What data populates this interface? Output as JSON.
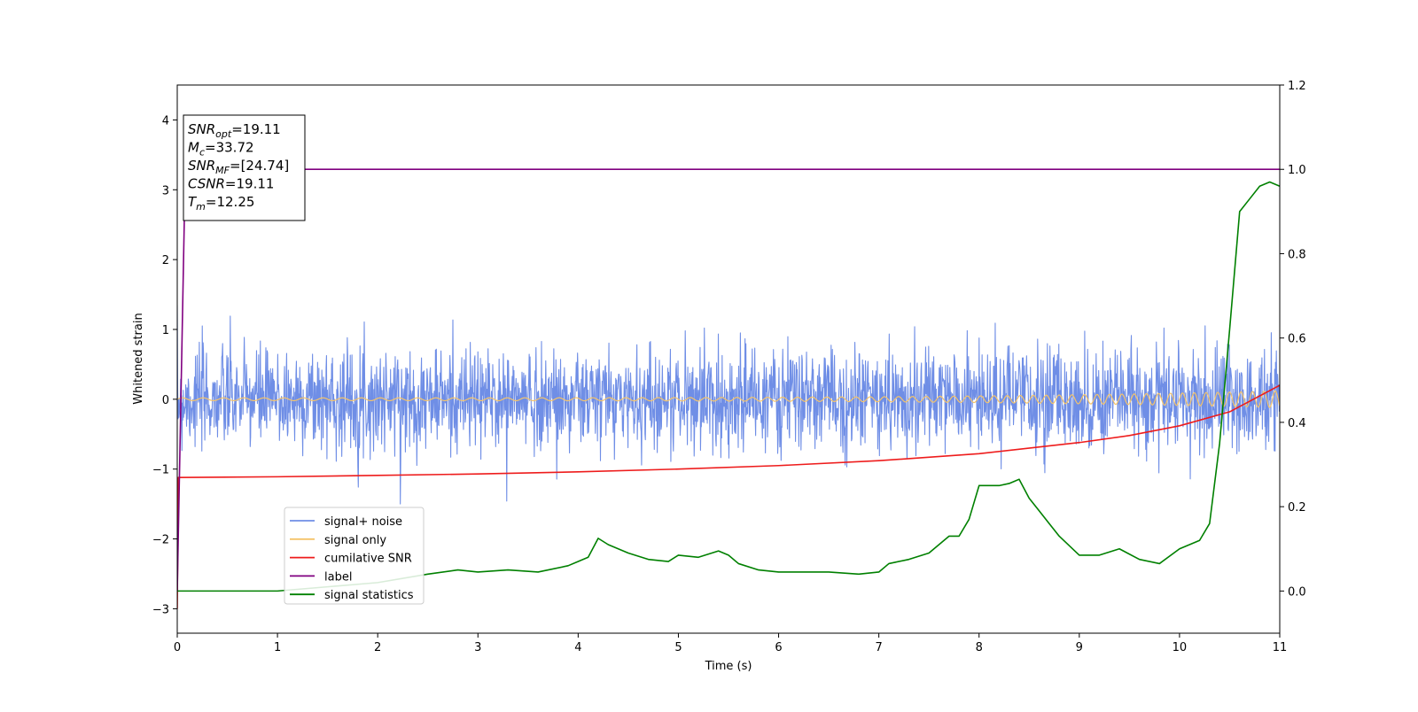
{
  "chart_data": {
    "type": "line",
    "xlabel": "Time (s)",
    "ylabel": "Whitened strain",
    "xlim": [
      0,
      11
    ],
    "ylim_left": [
      -3.35,
      4.5
    ],
    "ylim_right": [
      -0.1,
      1.2
    ],
    "x_ticks": [
      0,
      1,
      2,
      3,
      4,
      5,
      6,
      7,
      8,
      9,
      10,
      11
    ],
    "y_ticks_left": [
      -3,
      -2,
      -1,
      0,
      1,
      2,
      3,
      4
    ],
    "y_ticks_right": [
      0.0,
      0.2,
      0.4,
      0.6,
      0.8,
      1.0,
      1.2
    ],
    "grid": false,
    "legend_position": "lower-left",
    "annotation_box": {
      "position": "top-left",
      "lines": [
        {
          "base": "SNR",
          "sub": "opt",
          "rest": "=19.11"
        },
        {
          "base": "M",
          "sub": "c",
          "rest": "=33.72"
        },
        {
          "base": "SNR",
          "sub": "MF",
          "rest": "=[24.74]"
        },
        {
          "base": "CSNR",
          "sub": "",
          "rest": "=19.11"
        },
        {
          "base": "T",
          "sub": "m",
          "rest": "=12.25"
        }
      ]
    },
    "series": [
      {
        "name": "signal+ noise",
        "color": "#6f8ee6",
        "axis": "left",
        "kind": "noise",
        "typical_range": [
          -0.9,
          0.9
        ],
        "extreme_range": [
          -1.5,
          1.35
        ]
      },
      {
        "name": "signal only",
        "color": "#f5c46a",
        "axis": "left",
        "kind": "chirp",
        "amplitude_start": 0.02,
        "amplitude_end": 0.12
      },
      {
        "name": "cumilative SNR",
        "color": "#ee1c1c",
        "axis": "left",
        "x": [
          0,
          0.01,
          1,
          2,
          3,
          4,
          5,
          6,
          7,
          8,
          9,
          9.5,
          10,
          10.5,
          11
        ],
        "values": [
          -3.0,
          -1.12,
          -1.11,
          -1.09,
          -1.07,
          -1.04,
          -1.0,
          -0.95,
          -0.88,
          -0.78,
          -0.62,
          -0.52,
          -0.38,
          -0.18,
          0.2
        ]
      },
      {
        "name": "label",
        "color": "#800080",
        "axis": "right",
        "x": [
          0,
          0.08,
          11
        ],
        "values": [
          0.0,
          1.0,
          1.0
        ]
      },
      {
        "name": "signal statistics",
        "color": "#008000",
        "axis": "right",
        "x": [
          0,
          0.3,
          0.6,
          1.0,
          1.5,
          2.0,
          2.5,
          2.8,
          3.0,
          3.3,
          3.6,
          3.9,
          4.1,
          4.2,
          4.3,
          4.5,
          4.7,
          4.9,
          5.0,
          5.2,
          5.4,
          5.5,
          5.6,
          5.8,
          6.0,
          6.2,
          6.5,
          6.8,
          7.0,
          7.1,
          7.3,
          7.5,
          7.7,
          7.8,
          7.9,
          8.0,
          8.1,
          8.2,
          8.3,
          8.35,
          8.4,
          8.5,
          8.6,
          8.7,
          8.8,
          9.0,
          9.2,
          9.4,
          9.6,
          9.8,
          10.0,
          10.1,
          10.2,
          10.3,
          10.4,
          10.5,
          10.6,
          10.7,
          10.8,
          10.9,
          11.0
        ],
        "values": [
          0.0,
          0.0,
          0.0,
          0.0,
          0.01,
          0.02,
          0.04,
          0.05,
          0.045,
          0.05,
          0.045,
          0.06,
          0.08,
          0.125,
          0.11,
          0.09,
          0.075,
          0.07,
          0.085,
          0.08,
          0.095,
          0.085,
          0.065,
          0.05,
          0.045,
          0.045,
          0.045,
          0.04,
          0.045,
          0.065,
          0.075,
          0.09,
          0.13,
          0.13,
          0.17,
          0.25,
          0.25,
          0.25,
          0.255,
          0.26,
          0.265,
          0.22,
          0.19,
          0.16,
          0.13,
          0.085,
          0.085,
          0.1,
          0.075,
          0.065,
          0.1,
          0.11,
          0.12,
          0.16,
          0.35,
          0.62,
          0.9,
          0.93,
          0.96,
          0.97,
          0.96
        ]
      }
    ]
  }
}
